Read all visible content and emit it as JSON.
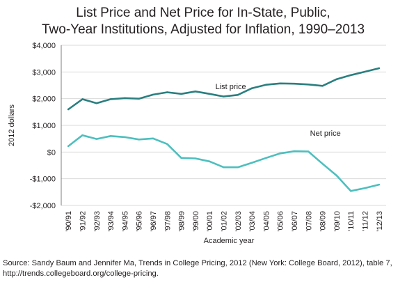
{
  "chart_data": {
    "type": "line",
    "title_lines": [
      "List Price and Net Price for In-State, Public,",
      "Two-Year Institutions, Adjusted for Inflation, 1990–2013"
    ],
    "xlabel": "Academic year",
    "ylabel": "2012 dollars",
    "categories": [
      "'90/91",
      "'91/92",
      "'92/93",
      "'93/94",
      "'94/95",
      "'95/96",
      "'96/97",
      "'97/98",
      "'98/99",
      "'99/00",
      "'00/01",
      "'01/02",
      "'02/03",
      "'03/04",
      "'04/05",
      "'05/06",
      "'06/07",
      "'07/08",
      "'08/09",
      "'09/10",
      "'10/11",
      "'11/12",
      "'12/13"
    ],
    "ylim": [
      -2000,
      4000
    ],
    "yticks": [
      -2000,
      -1000,
      0,
      1000,
      2000,
      3000,
      4000
    ],
    "ytick_labels": [
      "-$2,000",
      "-$1,000",
      "$0",
      "$1,000",
      "$2,000",
      "$3,000",
      "$4,000"
    ],
    "grid": true,
    "series": [
      {
        "name": "List price",
        "color": "#2a7f80",
        "values": [
          1600,
          1980,
          1830,
          1980,
          2020,
          2000,
          2150,
          2240,
          2180,
          2270,
          2180,
          2080,
          2140,
          2390,
          2520,
          2570,
          2560,
          2530,
          2480,
          2730,
          2880,
          3010,
          3140
        ]
      },
      {
        "name": "Net price",
        "color": "#4dbfbe",
        "values": [
          220,
          630,
          490,
          600,
          560,
          470,
          510,
          300,
          -220,
          -240,
          -350,
          -570,
          -570,
          -400,
          -220,
          -50,
          30,
          20,
          -440,
          -880,
          -1460,
          -1350,
          -1220
        ]
      }
    ]
  },
  "source": {
    "text": "Source:  Sandy Baum and Jennifer Ma, Trends in College Pricing, 2012 (New York: College Board, 2012), table 7, http://trends.collegeboard.org/college-pricing."
  }
}
